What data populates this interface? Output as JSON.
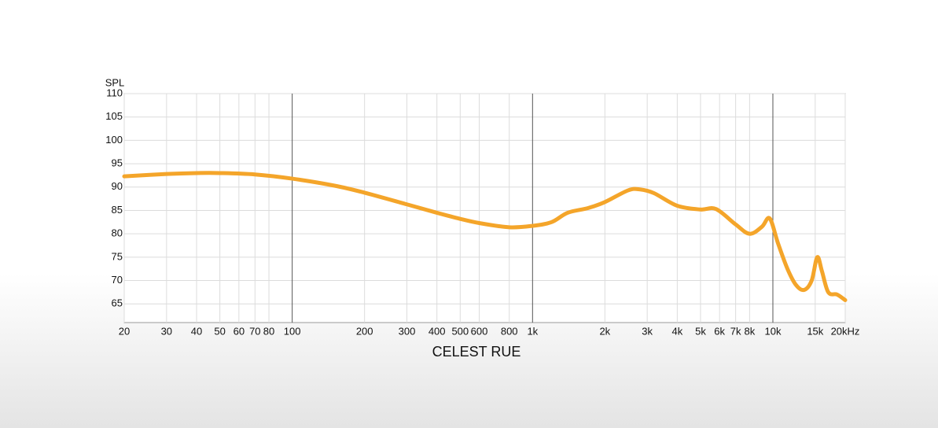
{
  "chart_data": {
    "type": "line",
    "title": "CELEST RUE",
    "y_label": "SPL",
    "log_x": true,
    "grid": true,
    "color": "#f4a52a",
    "x": [
      20,
      30,
      40,
      50,
      70,
      100,
      150,
      200,
      300,
      400,
      500,
      600,
      800,
      1000,
      1200,
      1400,
      1700,
      2000,
      2500,
      2800,
      3200,
      4000,
      5000,
      5800,
      7000,
      8000,
      9000,
      9700,
      10500,
      11500,
      12500,
      13500,
      14500,
      15300,
      16000,
      17000,
      18500,
      20000
    ],
    "values": [
      92.3,
      92.8,
      93.0,
      93.0,
      92.7,
      91.8,
      90.3,
      88.8,
      86.3,
      84.5,
      83.2,
      82.3,
      81.4,
      81.7,
      82.5,
      84.5,
      85.5,
      86.8,
      89.3,
      89.5,
      88.7,
      86.0,
      85.2,
      85.3,
      82.0,
      80.0,
      81.5,
      83.3,
      78.0,
      72.5,
      69.0,
      68.0,
      70.0,
      75.0,
      72.0,
      67.5,
      67.0,
      65.8
    ],
    "xlim": [
      20,
      20000
    ],
    "ylim": [
      61,
      110
    ],
    "yticks": [
      65,
      70,
      75,
      80,
      85,
      90,
      95,
      100,
      105,
      110
    ],
    "xticks": [
      20,
      30,
      40,
      50,
      60,
      70,
      80,
      100,
      200,
      300,
      400,
      500,
      600,
      800,
      {
        "value": 1000,
        "label": "1k"
      },
      {
        "value": 2000,
        "label": "2k"
      },
      {
        "value": 3000,
        "label": "3k"
      },
      {
        "value": 4000,
        "label": "4k"
      },
      {
        "value": 5000,
        "label": "5k"
      },
      {
        "value": 6000,
        "label": "6k"
      },
      {
        "value": 7000,
        "label": "7k"
      },
      {
        "value": 8000,
        "label": "8k"
      },
      {
        "value": 10000,
        "label": "10k"
      },
      {
        "value": 15000,
        "label": "15k"
      },
      {
        "value": 20000,
        "label": "20kHz"
      }
    ]
  }
}
